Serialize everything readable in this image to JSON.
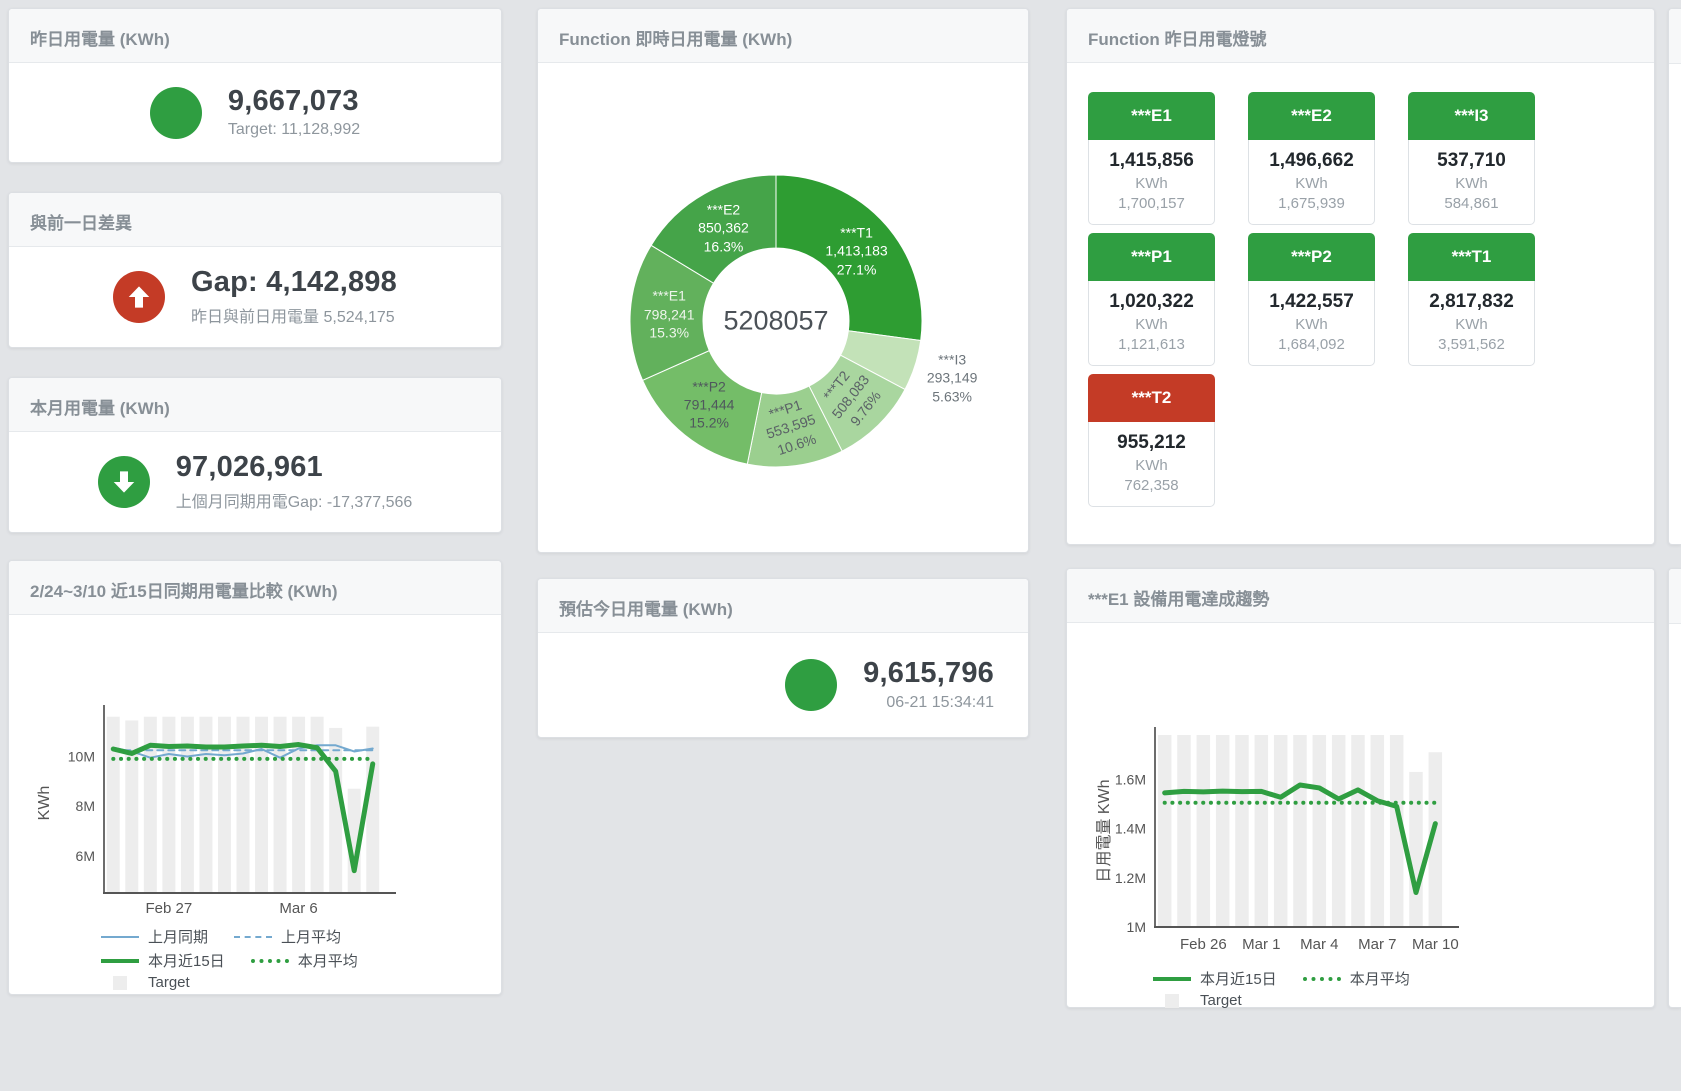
{
  "colors": {
    "accent_green": "#2f9e41",
    "accent_red": "#c43b26",
    "target_bar": "#ededed",
    "line_blue": "#74a9cf",
    "line_green": "#2f9e41"
  },
  "stat_cards": [
    {
      "title": "昨日用電量 (KWh)",
      "indicator": "green-circle",
      "value": "9,667,073",
      "sub": "Target: 11,128,992"
    },
    {
      "title": "與前一日差異",
      "indicator": "red-up-arrow",
      "value": "Gap: 4,142,898",
      "sub": "昨日與前日用電量 5,524,175"
    },
    {
      "title": "本月用電量 (KWh)",
      "indicator": "green-down-arrow",
      "value": "97,026,961",
      "sub": "上個月同期用電Gap: -17,377,566"
    },
    {
      "title": "預估今日用電量 (KWh)",
      "indicator": "green-circle",
      "value": "9,615,796",
      "sub": "06-21 15:34:41"
    }
  ],
  "tiles_panel": {
    "title": "Function 昨日用電燈號",
    "unit": "KWh",
    "items": [
      {
        "label": "***E1",
        "value": "1,415,856",
        "target": "1,700,157",
        "status": "green"
      },
      {
        "label": "***E2",
        "value": "1,496,662",
        "target": "1,675,939",
        "status": "green"
      },
      {
        "label": "***I3",
        "value": "537,710",
        "target": "584,861",
        "status": "green"
      },
      {
        "label": "***P1",
        "value": "1,020,322",
        "target": "1,121,613",
        "status": "green"
      },
      {
        "label": "***P2",
        "value": "1,422,557",
        "target": "1,684,092",
        "status": "green"
      },
      {
        "label": "***T1",
        "value": "2,817,832",
        "target": "3,591,562",
        "status": "green"
      },
      {
        "label": "***T2",
        "value": "955,212",
        "target": "762,358",
        "status": "red"
      }
    ]
  },
  "chart_data": [
    {
      "id": "realtime-donut",
      "type": "pie",
      "title": "Function 即時日用電量 (KWh)",
      "center_total": "5208057",
      "segments": [
        {
          "name": "***T1",
          "value": "1,413,183",
          "pct": "27.1%",
          "color": "#2e9d32",
          "label_color": "#ffffff",
          "label_rotation": 0,
          "label_outside": false
        },
        {
          "name": "***I3",
          "value": "293,149",
          "pct": "5.63%",
          "color": "#c3e2b8",
          "label_color": "#6d757b",
          "label_rotation": 0,
          "label_outside": true
        },
        {
          "name": "***T2",
          "value": "508,083",
          "pct": "9.76%",
          "color": "#a9d69f",
          "label_color": "#5a6166",
          "label_rotation": -52,
          "label_outside": false
        },
        {
          "name": "***P1",
          "value": "553,595",
          "pct": "10.6%",
          "color": "#9bcf8f",
          "label_color": "#5a6166",
          "label_rotation": -18,
          "label_outside": false
        },
        {
          "name": "***P2",
          "value": "791,444",
          "pct": "15.2%",
          "color": "#74bd68",
          "label_color": "#4f575d",
          "label_rotation": 0,
          "label_outside": false
        },
        {
          "name": "***E1",
          "value": "798,241",
          "pct": "15.3%",
          "color": "#62b15c",
          "label_color": "#eef5ec",
          "label_rotation": 0,
          "label_outside": false
        },
        {
          "name": "***E2",
          "value": "850,362",
          "pct": "16.3%",
          "color": "#45a449",
          "label_color": "#ffffff",
          "label_rotation": 0,
          "label_outside": false
        }
      ]
    },
    {
      "id": "compare-15day",
      "type": "line",
      "title": "2/24~3/10 近15日同期用電量比較 (KWh)",
      "ylabel": "KWh",
      "ylim": [
        4.5,
        11.75
      ],
      "yticks": [
        {
          "v": 6,
          "label": "6M"
        },
        {
          "v": 8,
          "label": "8M"
        },
        {
          "v": 10,
          "label": "10M"
        }
      ],
      "xticks": [
        {
          "i": 3,
          "label": "Feb 27"
        },
        {
          "i": 10,
          "label": "Mar 6"
        }
      ],
      "target_name": "Target",
      "target_bars": [
        11.6,
        11.45,
        11.6,
        11.6,
        11.6,
        11.6,
        11.6,
        11.6,
        11.6,
        11.6,
        11.6,
        11.6,
        11.15,
        8.7,
        11.2
      ],
      "series": [
        {
          "name": "上月同期",
          "style": "solid",
          "width": 2,
          "color": "#74a9cf",
          "values": [
            10.35,
            10.2,
            9.95,
            10.1,
            10.0,
            10.1,
            10.05,
            10.12,
            10.3,
            9.95,
            10.32,
            10.45,
            10.45,
            10.2,
            10.32
          ]
        },
        {
          "name": "上月平均",
          "style": "dashed",
          "width": 2,
          "color": "#74a9cf",
          "values": [
            10.25,
            10.25,
            10.25,
            10.25,
            10.25,
            10.25,
            10.25,
            10.25,
            10.25,
            10.25,
            10.25,
            10.25,
            10.25,
            10.25,
            10.25
          ]
        },
        {
          "name": "本月平均",
          "style": "dotted",
          "width": 4,
          "color": "#2f9e41",
          "values": [
            9.9,
            9.9,
            9.9,
            9.9,
            9.9,
            9.9,
            9.9,
            9.9,
            9.9,
            9.9,
            9.9,
            9.9,
            9.9,
            9.9,
            9.9
          ]
        },
        {
          "name": "本月近15日",
          "style": "solid",
          "width": 5,
          "color": "#2f9e41",
          "values": [
            10.3,
            10.12,
            10.45,
            10.4,
            10.42,
            10.38,
            10.38,
            10.42,
            10.45,
            10.4,
            10.48,
            10.35,
            9.4,
            5.4,
            9.7
          ]
        }
      ],
      "legend": [
        [
          {
            "label": "上月同期",
            "swatch": "blue-line"
          },
          {
            "label": "上月平均",
            "swatch": "blue-dash"
          }
        ],
        [
          {
            "label": "本月近15日",
            "swatch": "green-thick"
          },
          {
            "label": "本月平均",
            "swatch": "green-dot"
          }
        ],
        [
          {
            "label": "Target",
            "swatch": "target-box"
          }
        ]
      ]
    },
    {
      "id": "e1-trend",
      "type": "line",
      "title": "***E1 設備用電達成趨勢",
      "ylabel": "日用電量 KWh",
      "ylim": [
        1.0,
        1.78
      ],
      "yticks": [
        {
          "v": 1,
          "label": "1M"
        },
        {
          "v": 1.2,
          "label": "1.2M"
        },
        {
          "v": 1.4,
          "label": "1.4M"
        },
        {
          "v": 1.6,
          "label": "1.6M"
        }
      ],
      "xticks": [
        {
          "i": 2,
          "label": "Feb 26"
        },
        {
          "i": 5,
          "label": "Mar 1"
        },
        {
          "i": 8,
          "label": "Mar 4"
        },
        {
          "i": 11,
          "label": "Mar 7"
        },
        {
          "i": 14,
          "label": "Mar 10"
        }
      ],
      "target_name": "Target",
      "target_bars": [
        1.78,
        1.78,
        1.78,
        1.78,
        1.78,
        1.78,
        1.78,
        1.78,
        1.78,
        1.78,
        1.78,
        1.78,
        1.78,
        1.63,
        1.71
      ],
      "series": [
        {
          "name": "本月平均",
          "style": "dotted",
          "width": 4,
          "color": "#2f9e41",
          "values": [
            1.505,
            1.505,
            1.505,
            1.505,
            1.505,
            1.505,
            1.505,
            1.505,
            1.505,
            1.505,
            1.505,
            1.505,
            1.505,
            1.505,
            1.505
          ]
        },
        {
          "name": "本月近15日",
          "style": "solid",
          "width": 5,
          "color": "#2f9e41",
          "values": [
            1.545,
            1.551,
            1.549,
            1.552,
            1.55,
            1.551,
            1.527,
            1.577,
            1.565,
            1.52,
            1.557,
            1.513,
            1.49,
            1.14,
            1.42
          ]
        }
      ],
      "legend": [
        [
          {
            "label": "本月近15日",
            "swatch": "green-thick"
          },
          {
            "label": "本月平均",
            "swatch": "green-dot"
          }
        ],
        [
          {
            "label": "Target",
            "swatch": "target-box"
          }
        ]
      ]
    }
  ]
}
